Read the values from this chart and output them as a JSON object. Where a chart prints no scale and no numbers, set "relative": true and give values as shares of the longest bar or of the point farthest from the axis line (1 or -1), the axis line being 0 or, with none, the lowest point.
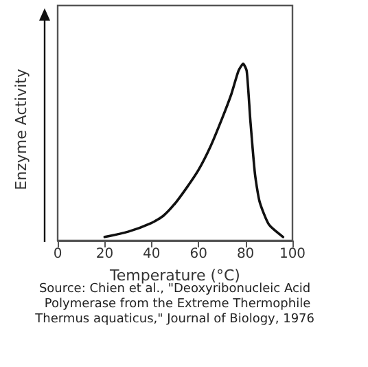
{
  "chart_data": {
    "type": "line",
    "xlabel": "Temperature (°C)",
    "ylabel": "Enzyme Activity",
    "relative": true,
    "annotations": [
      "Source: Chien et al., \"Deoxyribonucleic Acid Polymerase from the Extreme Thermophile Thermus aquaticus,\" Journal of Biology, 1976"
    ],
    "xlim": [
      0,
      100
    ],
    "xticks": [
      0,
      20,
      40,
      60,
      80,
      100
    ],
    "marker": "none",
    "grid": false,
    "series": [
      {
        "color": "#111111",
        "x": [
          20,
          30,
          40,
          45,
          50,
          55,
          60,
          65,
          70,
          74,
          77,
          79,
          80.5,
          82,
          84,
          86,
          90,
          96
        ],
        "values": [
          0.02,
          0.05,
          0.1,
          0.14,
          0.21,
          0.3,
          0.4,
          0.53,
          0.69,
          0.83,
          0.96,
          1,
          0.96,
          0.69,
          0.38,
          0.22,
          0.09,
          0.02
        ]
      }
    ]
  }
}
